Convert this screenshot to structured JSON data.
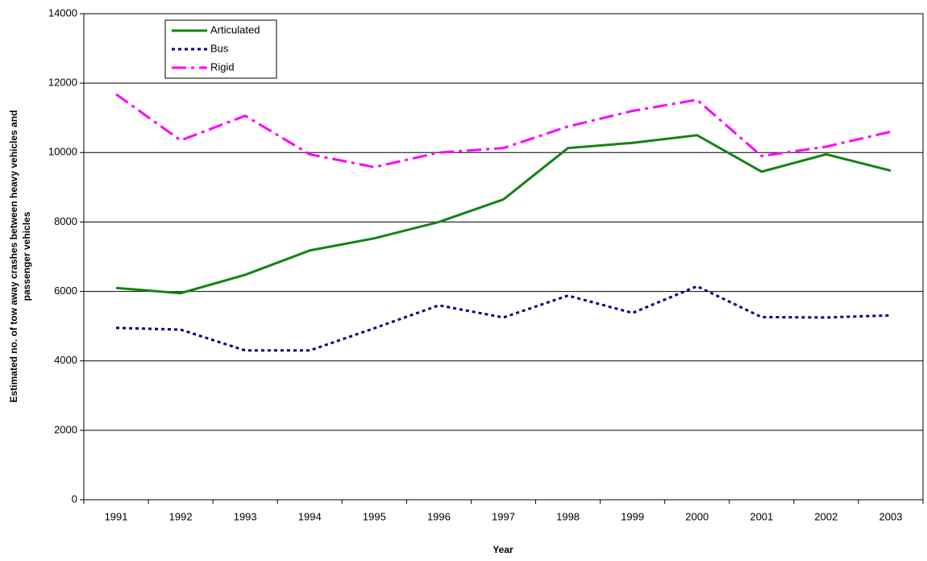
{
  "chart_data": {
    "type": "line",
    "xlabel": "Year",
    "ylabel": [
      "Estimated no. of tow away crashes between heavy vehicles and",
      "passenger vehicles"
    ],
    "categories": [
      "1991",
      "1992",
      "1993",
      "1994",
      "1995",
      "1996",
      "1997",
      "1998",
      "1999",
      "2000",
      "2001",
      "2002",
      "2003"
    ],
    "series": [
      {
        "name": "Articulated",
        "color": "#138313",
        "dash": "solid",
        "values": [
          6100,
          5950,
          6480,
          7180,
          7530,
          8000,
          8650,
          10130,
          10280,
          10500,
          9450,
          9950,
          9480
        ]
      },
      {
        "name": "Bus",
        "color": "#000080",
        "dash": "dot",
        "values": [
          4950,
          4900,
          4300,
          4300,
          4940,
          5600,
          5250,
          5880,
          5380,
          6150,
          5260,
          5250,
          5310
        ]
      },
      {
        "name": "Rigid",
        "color": "#ff00ff",
        "dash": "dashdot",
        "values": [
          11680,
          10350,
          11060,
          9950,
          9580,
          10000,
          10130,
          10750,
          11200,
          11520,
          9900,
          10170,
          10600
        ]
      }
    ],
    "ylim": [
      0,
      14000
    ],
    "yticks": [
      0,
      2000,
      4000,
      6000,
      8000,
      10000,
      12000,
      14000
    ],
    "grid": true,
    "legend": "top-left"
  }
}
